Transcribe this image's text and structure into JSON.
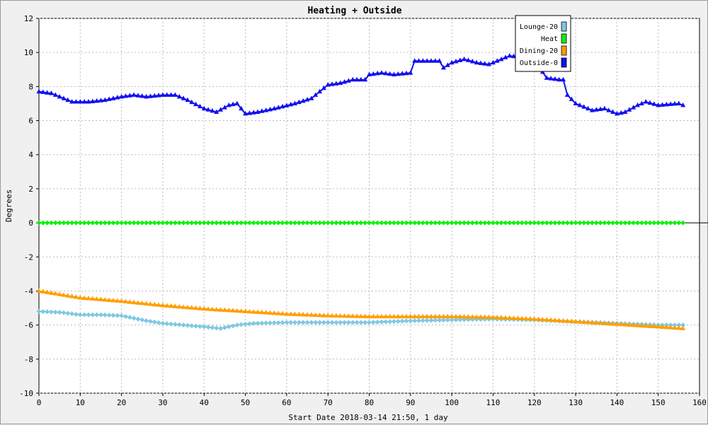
{
  "chart_data": {
    "type": "line",
    "title": "Heating + Outside",
    "xlabel": "Start Date 2018-03-14 21:50, 1 day",
    "ylabel": "Degrees",
    "xlim": [
      0,
      160
    ],
    "ylim": [
      -10,
      12
    ],
    "x_ticks": [
      "0",
      "10",
      "20",
      "30",
      "40",
      "50",
      "60",
      "70",
      "80",
      "90",
      "100",
      "110",
      "120",
      "130",
      "140",
      "150",
      "160"
    ],
    "y_ticks": [
      "12",
      "10",
      "8",
      "6",
      "4",
      "2",
      "0",
      "-2",
      "-4",
      "-6",
      "-8",
      "-10"
    ],
    "grid": true,
    "legend_position": "top-right",
    "series": [
      {
        "name": "Lounge-20",
        "color": "#7ec8e3",
        "marker": "diamond",
        "points": [
          [
            0,
            -5.2
          ],
          [
            5,
            -5.25
          ],
          [
            10,
            -5.4
          ],
          [
            15,
            -5.4
          ],
          [
            20,
            -5.45
          ],
          [
            23,
            -5.6
          ],
          [
            26,
            -5.75
          ],
          [
            30,
            -5.9
          ],
          [
            35,
            -6.0
          ],
          [
            40,
            -6.1
          ],
          [
            44,
            -6.2
          ],
          [
            48,
            -6.0
          ],
          [
            52,
            -5.9
          ],
          [
            60,
            -5.85
          ],
          [
            70,
            -5.85
          ],
          [
            80,
            -5.85
          ],
          [
            90,
            -5.75
          ],
          [
            100,
            -5.7
          ],
          [
            110,
            -5.65
          ],
          [
            120,
            -5.7
          ],
          [
            130,
            -5.8
          ],
          [
            140,
            -5.9
          ],
          [
            150,
            -6.0
          ],
          [
            156,
            -6.0
          ]
        ]
      },
      {
        "name": "Heat",
        "color": "#11ee11",
        "marker": "diamond",
        "points": [
          [
            0,
            0
          ],
          [
            156,
            0
          ]
        ]
      },
      {
        "name": "Dining-20",
        "color": "#ff9f00",
        "marker": "triangle",
        "points": [
          [
            0,
            -4.0
          ],
          [
            5,
            -4.2
          ],
          [
            10,
            -4.4
          ],
          [
            20,
            -4.6
          ],
          [
            30,
            -4.85
          ],
          [
            40,
            -5.05
          ],
          [
            50,
            -5.2
          ],
          [
            60,
            -5.35
          ],
          [
            70,
            -5.45
          ],
          [
            80,
            -5.5
          ],
          [
            90,
            -5.5
          ],
          [
            100,
            -5.5
          ],
          [
            110,
            -5.55
          ],
          [
            120,
            -5.65
          ],
          [
            130,
            -5.8
          ],
          [
            140,
            -5.95
          ],
          [
            150,
            -6.1
          ],
          [
            156,
            -6.2
          ]
        ]
      },
      {
        "name": "Outside-0",
        "color": "#1111ee",
        "marker": "triangle",
        "points": [
          [
            0,
            7.7
          ],
          [
            3,
            7.6
          ],
          [
            5,
            7.4
          ],
          [
            8,
            7.1
          ],
          [
            12,
            7.1
          ],
          [
            16,
            7.2
          ],
          [
            20,
            7.4
          ],
          [
            23,
            7.5
          ],
          [
            26,
            7.4
          ],
          [
            30,
            7.5
          ],
          [
            33,
            7.5
          ],
          [
            36,
            7.2
          ],
          [
            40,
            6.7
          ],
          [
            43,
            6.5
          ],
          [
            46,
            6.9
          ],
          [
            48,
            7.0
          ],
          [
            50,
            6.4
          ],
          [
            53,
            6.5
          ],
          [
            57,
            6.7
          ],
          [
            62,
            7.0
          ],
          [
            66,
            7.3
          ],
          [
            70,
            8.1
          ],
          [
            73,
            8.2
          ],
          [
            76,
            8.4
          ],
          [
            79,
            8.4
          ],
          [
            80,
            8.7
          ],
          [
            83,
            8.8
          ],
          [
            86,
            8.7
          ],
          [
            90,
            8.8
          ],
          [
            91,
            9.5
          ],
          [
            97,
            9.5
          ],
          [
            98,
            9.1
          ],
          [
            100,
            9.4
          ],
          [
            103,
            9.6
          ],
          [
            106,
            9.4
          ],
          [
            109,
            9.3
          ],
          [
            112,
            9.6
          ],
          [
            114,
            9.8
          ],
          [
            117,
            9.7
          ],
          [
            119,
            9.8
          ],
          [
            121,
            9.2
          ],
          [
            123,
            8.5
          ],
          [
            126,
            8.4
          ],
          [
            127,
            8.4
          ],
          [
            128,
            7.5
          ],
          [
            130,
            7.0
          ],
          [
            134,
            6.6
          ],
          [
            137,
            6.7
          ],
          [
            140,
            6.4
          ],
          [
            142,
            6.5
          ],
          [
            145,
            6.9
          ],
          [
            147,
            7.1
          ],
          [
            150,
            6.9
          ],
          [
            155,
            7.0
          ],
          [
            156,
            6.9
          ]
        ]
      }
    ]
  }
}
